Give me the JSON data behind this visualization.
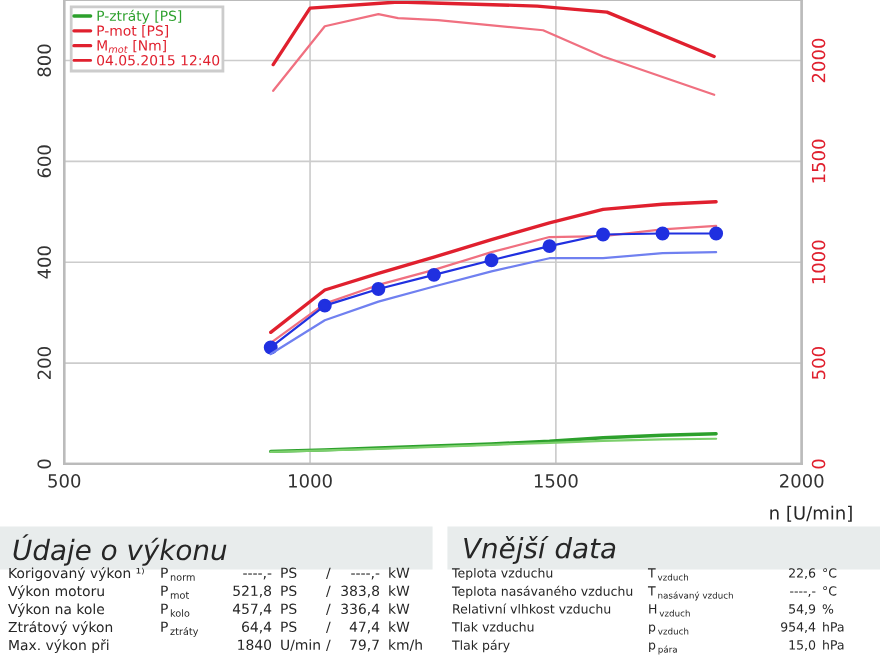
{
  "chart_data": {
    "type": "line",
    "xlabel": "n [U/min]",
    "x": [
      920,
      1030,
      1139,
      1252,
      1369,
      1487,
      1596,
      1717,
      1826
    ],
    "xlim": [
      500,
      2000
    ],
    "xticks": [
      500,
      1000,
      1500,
      2000
    ],
    "ylim": [
      0,
      920
    ],
    "yticks": [
      0,
      200,
      400,
      600,
      800
    ],
    "y2lim": [
      0,
      2300
    ],
    "y2ticks": [
      0,
      500,
      1000,
      1500,
      2000
    ],
    "grid": true,
    "legend": "top left",
    "tick_labels": "xy",
    "series": [
      {
        "name": "P-ztráty [PS]",
        "color": "#2ca02c",
        "values": [
          25,
          28,
          32,
          36,
          40,
          45,
          52,
          57,
          60
        ]
      },
      {
        "color": "#7ccf6c",
        "values": [
          24,
          27,
          30,
          34,
          38,
          42,
          46,
          49,
          50
        ]
      },
      {
        "name": "P-mot [PS]",
        "color": "#e0202e",
        "values": [
          261,
          345,
          378,
          410,
          445,
          478,
          505,
          515,
          520
        ]
      },
      {
        "color": "#f07080",
        "values": [
          240,
          318,
          355,
          385,
          420,
          450,
          452,
          465,
          472
        ]
      },
      {
        "color": "#2030e0",
        "marker": "circle",
        "values": [
          231,
          314,
          347,
          375,
          404,
          432,
          455,
          457,
          457
        ]
      },
      {
        "color": "#7080f0",
        "values": [
          218,
          285,
          322,
          352,
          382,
          408,
          408,
          418,
          420
        ]
      },
      {
        "name": "M$_{mot}$ [Nm]",
        "color": "#e0202e",
        "axis": "y2",
        "x": [
          925,
          1000,
          1180,
          1462,
          1604,
          1822
        ],
        "values": [
          1980,
          2260,
          2290,
          2270,
          2240,
          2020
        ]
      },
      {
        "color": "#f07080",
        "axis": "y2",
        "x": [
          925,
          1030,
          1139,
          1179,
          1260,
          1474,
          1596,
          1822
        ],
        "values": [
          1850,
          2170,
          2230,
          2210,
          2200,
          2150,
          2020,
          1830
        ]
      }
    ],
    "annotations": [
      "04.05.2015 12:40",
      "Údaje o výkonu",
      "Korigovaný výkon ¹⁾",
      "P$_{norm}$",
      "----,-",
      "PS",
      "/",
      "----,-",
      "kW",
      "Výkon motoru",
      "P$_{mot}$",
      "521,8",
      "PS",
      "/",
      "383,8",
      "kW",
      "Výkon na kole",
      "P$_{kolo}$",
      "457,4",
      "PS",
      "/",
      "336,4",
      "kW",
      "Ztrátový výkon",
      "P$_{ztráty}$",
      "64,4",
      "PS",
      "/",
      "47,4",
      "kW",
      "Max. výkon při",
      "1840",
      "U/min",
      "/",
      "79,7",
      "km/h",
      "Vnější data",
      "Teplota vzduchu",
      "T$_{vzduch}$",
      "22,6",
      "°C",
      "Teplota nasávaného vzduchu",
      "T$_{nasávaný vzduch}$",
      "----,-",
      "°C",
      "Relativní vlhkost vzduchu",
      "H$_{vzduch}$",
      "54,9",
      "%",
      "Tlak vzduchu",
      "p$_{vzduch}$",
      "954,4",
      "hPa",
      "Tlak páry",
      "p$_{pára}$",
      "15,0",
      "hPa"
    ]
  }
}
